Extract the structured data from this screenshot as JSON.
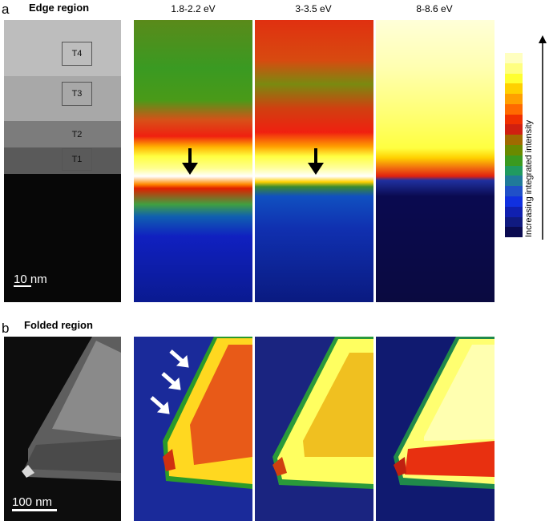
{
  "panel_a": {
    "letter": "a",
    "title": "Edge region",
    "energies": [
      "1.8-2.2 eV",
      "3-3.5 eV",
      "8-8.6 eV"
    ],
    "tiles": [
      "T4",
      "T3",
      "T2",
      "T1"
    ],
    "scalebar": "10 nm"
  },
  "panel_b": {
    "letter": "b",
    "title": "Folded region",
    "scalebar": "100 nm"
  },
  "legend": {
    "label": "Increasing integrated intensity",
    "colors": [
      "#ffffc0",
      "#ffff80",
      "#ffff30",
      "#ffd000",
      "#ffa000",
      "#ff6a00",
      "#f03000",
      "#d02010",
      "#a06a00",
      "#6a8a00",
      "#3a9a20",
      "#209a60",
      "#207a9a",
      "#2050c8",
      "#1030e0",
      "#1020b0",
      "#101a80",
      "#0a0a50"
    ]
  }
}
